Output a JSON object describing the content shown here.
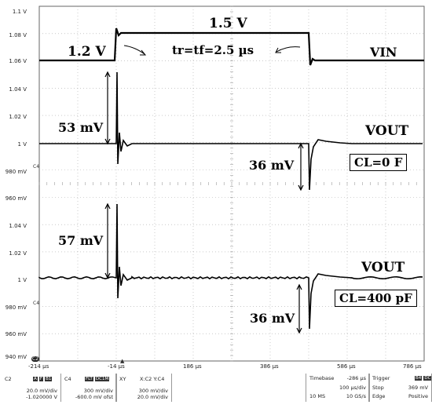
{
  "y_axis_labels": [
    "1.1 V",
    "1.08 V",
    "1.06 V",
    "1.04 V",
    "1.02 V",
    "1 V",
    "980 mV",
    "960 mV",
    "1.04 V",
    "1.02 V",
    "1 V",
    "980 mV",
    "960 mV",
    "940 mV"
  ],
  "x_axis_labels": [
    "-214 µs",
    "-14 µs",
    "186 µs",
    "386 µs",
    "586 µs",
    "786 µs"
  ],
  "channel_markers": {
    "c4_upper": "C4",
    "c4_lower": "C4",
    "c2_bottom": "C2"
  },
  "annotations": {
    "vin_low": "1.2 V",
    "vin_high": "1.5 V",
    "rise_fall": "tr=tf=2.5 µs",
    "vin_label": "VIN",
    "vout_label_1": "VOUT",
    "vout_label_2": "VOUT",
    "upper_overshoot": "53 mV",
    "upper_undershoot": "36 mV",
    "lower_overshoot": "57 mV",
    "lower_undershoot": "36 mV",
    "cl_upper": "CL=0 F",
    "cl_lower": "CL=400 pF"
  },
  "readout": {
    "c2": {
      "name": "C2",
      "flags": [
        "A",
        "F",
        "B1"
      ],
      "scale": "20.0 mV/div",
      "offset": "-1.020000 V"
    },
    "c4": {
      "name": "C4",
      "flags": [
        "FLT",
        "DC1M"
      ],
      "scale": "300 mV/div",
      "offset": "-600.0 mV ofst"
    },
    "xy": {
      "name": "XY",
      "source": "X:C2 Y:C4",
      "scale1": "300 mV/div",
      "scale2": "20.0 mV/div"
    },
    "timebase": {
      "label": "Timebase",
      "value": "-286 µs",
      "per_div": "100 µs/div",
      "mode": "10 MS",
      "rate": "10 GS/s"
    },
    "trigger": {
      "label": "Trigger",
      "tags": [
        "B4",
        "DC"
      ],
      "mode": "Stop",
      "level": "369 mV",
      "type": "Edge",
      "slope": "Positive"
    }
  }
}
